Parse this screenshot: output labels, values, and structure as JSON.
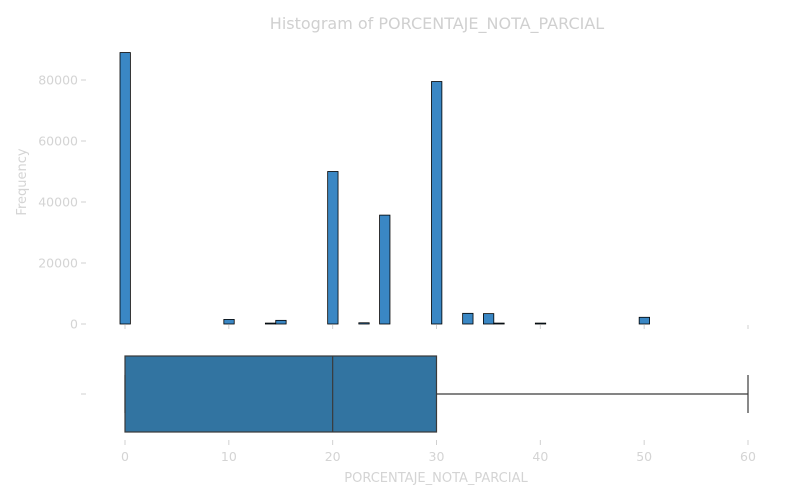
{
  "chart_data": [
    {
      "type": "bar",
      "title": "Histogram of PORCENTAJE_NOTA_PARCIAL",
      "ylabel": "Frequency",
      "xlabel": "",
      "xlim": [
        0,
        60
      ],
      "ylim": [
        0,
        90000
      ],
      "bin_width": 1,
      "y_ticks": [
        0,
        20000,
        40000,
        60000,
        80000
      ],
      "y_tick_labels": [
        "0",
        "20000",
        "40000",
        "60000",
        "80000"
      ],
      "bins": [
        {
          "x": 0,
          "count": 89000
        },
        {
          "x": 10,
          "count": 1500
        },
        {
          "x": 14,
          "count": 300
        },
        {
          "x": 15,
          "count": 1200
        },
        {
          "x": 20,
          "count": 50000
        },
        {
          "x": 23,
          "count": 400
        },
        {
          "x": 25,
          "count": 35700
        },
        {
          "x": 30,
          "count": 79500
        },
        {
          "x": 33,
          "count": 3500
        },
        {
          "x": 35,
          "count": 3400
        },
        {
          "x": 36,
          "count": 300
        },
        {
          "x": 40,
          "count": 300
        },
        {
          "x": 50,
          "count": 2200
        }
      ]
    },
    {
      "type": "box",
      "xlabel": "PORCENTAJE_NOTA_PARCIAL",
      "xlim": [
        0,
        60
      ],
      "min": 0,
      "q1": 0,
      "median": 20,
      "q3": 30,
      "max": 60,
      "color": "#3274a1",
      "x_ticks": [
        0,
        10,
        20,
        30,
        40,
        50,
        60
      ],
      "x_tick_labels": [
        "0",
        "10",
        "20",
        "30",
        "40",
        "50",
        "60"
      ]
    }
  ]
}
